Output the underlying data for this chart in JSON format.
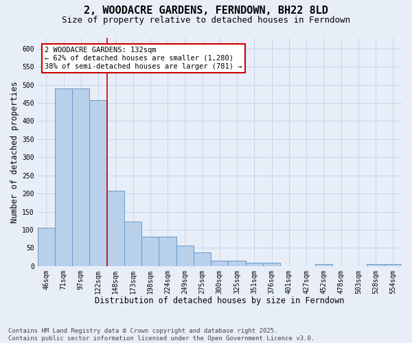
{
  "title_line1": "2, WOODACRE GARDENS, FERNDOWN, BH22 8LD",
  "title_line2": "Size of property relative to detached houses in Ferndown",
  "xlabel": "Distribution of detached houses by size in Ferndown",
  "ylabel": "Number of detached properties",
  "categories": [
    "46sqm",
    "71sqm",
    "97sqm",
    "122sqm",
    "148sqm",
    "173sqm",
    "198sqm",
    "224sqm",
    "249sqm",
    "275sqm",
    "300sqm",
    "325sqm",
    "351sqm",
    "376sqm",
    "401sqm",
    "427sqm",
    "452sqm",
    "478sqm",
    "503sqm",
    "528sqm",
    "554sqm"
  ],
  "values": [
    105,
    490,
    490,
    457,
    207,
    122,
    80,
    80,
    57,
    37,
    14,
    14,
    9,
    9,
    0,
    0,
    5,
    0,
    0,
    5,
    5
  ],
  "bar_color": "#b8d0ea",
  "bar_edge_color": "#6699cc",
  "bar_edge_width": 0.7,
  "grid_color": "#c5d5e8",
  "background_color": "#e8eef8",
  "vline_x_idx": 3,
  "vline_color": "#cc0000",
  "annotation_text": "2 WOODACRE GARDENS: 132sqm\n← 62% of detached houses are smaller (1,280)\n38% of semi-detached houses are larger (781) →",
  "annotation_box_facecolor": "#ffffff",
  "annotation_box_edgecolor": "#cc0000",
  "ylim": [
    0,
    630
  ],
  "yticks": [
    0,
    50,
    100,
    150,
    200,
    250,
    300,
    350,
    400,
    450,
    500,
    550,
    600
  ],
  "footnote": "Contains HM Land Registry data © Crown copyright and database right 2025.\nContains public sector information licensed under the Open Government Licence v3.0.",
  "title_fontsize": 11,
  "subtitle_fontsize": 9,
  "axis_label_fontsize": 8.5,
  "tick_fontsize": 7,
  "annotation_fontsize": 7.5,
  "footnote_fontsize": 6.5
}
